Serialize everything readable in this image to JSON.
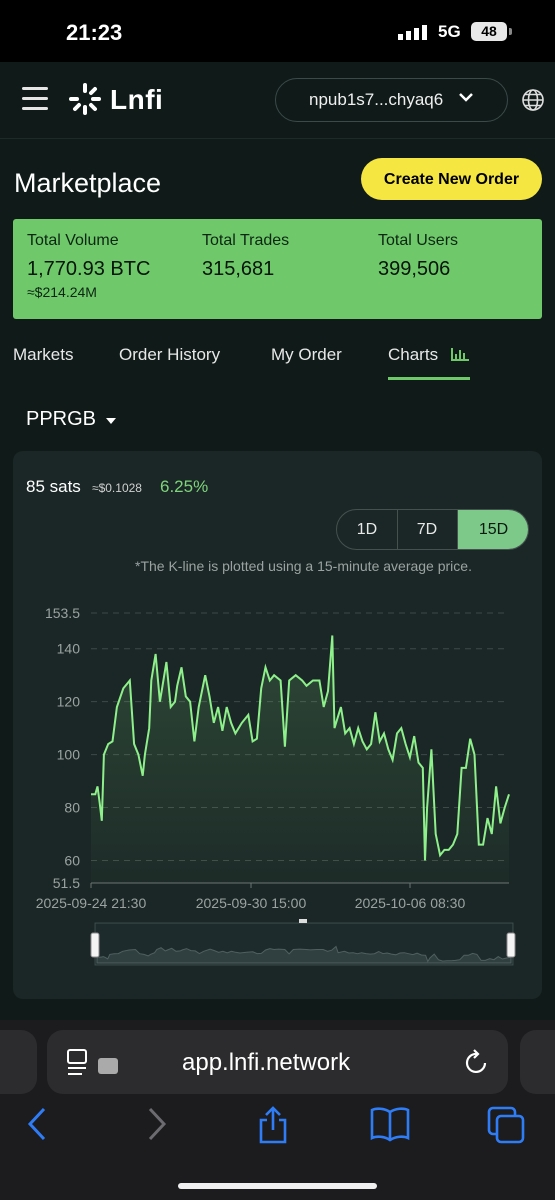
{
  "status_bar": {
    "time": "21:23",
    "network": "5G",
    "battery": "48"
  },
  "header": {
    "brand": "Lnfi",
    "wallet": "npub1s7...chyaq6"
  },
  "page": {
    "title": "Marketplace",
    "create_button": "Create New Order"
  },
  "stats": [
    {
      "label": "Total Volume",
      "value": "1,770.93 BTC",
      "sub": "≈$214.24M"
    },
    {
      "label": "Total Trades",
      "value": "315,681"
    },
    {
      "label": "Total Users",
      "value": "399,506"
    }
  ],
  "tabs": [
    "Markets",
    "Order History",
    "My Order",
    "Charts"
  ],
  "active_tab": "Charts",
  "token": {
    "selected": "PPRGB"
  },
  "price": {
    "sats": "85 sats",
    "usd": "≈$0.1028",
    "change": "6.25%"
  },
  "ranges": [
    "1D",
    "7D",
    "15D"
  ],
  "active_range": "15D",
  "note": "*The K-line is plotted using a 15-minute average price.",
  "browser": {
    "url": "app.lnfi.network"
  },
  "colors": {
    "accent_green": "#6fc96a",
    "line_green": "#8ef08a",
    "button_yellow": "#f5e642",
    "card_bg": "#1b2726"
  },
  "chart_data": {
    "type": "line",
    "ylim": [
      51.5,
      153.5
    ],
    "yticks": [
      "153.5",
      "140",
      "120",
      "100",
      "80",
      "60",
      "51.5"
    ],
    "xticks": [
      "2025-09-24 21:30",
      "2025-09-30 15:00",
      "2025-10-06 08:30"
    ],
    "x_range_days": [
      0,
      15
    ],
    "points": [
      [
        0,
        85
      ],
      [
        0.2,
        85
      ],
      [
        0.3,
        88
      ],
      [
        0.4,
        82
      ],
      [
        0.5,
        75
      ],
      [
        0.6,
        100
      ],
      [
        0.8,
        104
      ],
      [
        1.0,
        105
      ],
      [
        1.2,
        118
      ],
      [
        1.5,
        125
      ],
      [
        1.8,
        128
      ],
      [
        2.0,
        104
      ],
      [
        2.2,
        100
      ],
      [
        2.4,
        92
      ],
      [
        2.5,
        100
      ],
      [
        2.7,
        110
      ],
      [
        2.8,
        128
      ],
      [
        3.0,
        138
      ],
      [
        3.2,
        120
      ],
      [
        3.3,
        125
      ],
      [
        3.5,
        135
      ],
      [
        3.7,
        118
      ],
      [
        3.9,
        120
      ],
      [
        4.0,
        126
      ],
      [
        4.2,
        133
      ],
      [
        4.4,
        122
      ],
      [
        4.6,
        120
      ],
      [
        4.8,
        105
      ],
      [
        5.0,
        118
      ],
      [
        5.3,
        130
      ],
      [
        5.5,
        122
      ],
      [
        5.7,
        112
      ],
      [
        5.9,
        118
      ],
      [
        6.1,
        109
      ],
      [
        6.3,
        118
      ],
      [
        6.5,
        112
      ],
      [
        6.7,
        108
      ],
      [
        7.0,
        112
      ],
      [
        7.3,
        115
      ],
      [
        7.5,
        105
      ],
      [
        7.7,
        106
      ],
      [
        7.9,
        125
      ],
      [
        8.1,
        133
      ],
      [
        8.3,
        128
      ],
      [
        8.5,
        130
      ],
      [
        8.8,
        128
      ],
      [
        9.0,
        103
      ],
      [
        9.2,
        128
      ],
      [
        9.5,
        130
      ],
      [
        9.8,
        128
      ],
      [
        10.0,
        126
      ],
      [
        10.3,
        128
      ],
      [
        10.6,
        128
      ],
      [
        10.8,
        118
      ],
      [
        11.0,
        124
      ],
      [
        11.2,
        145
      ],
      [
        11.3,
        110
      ],
      [
        11.6,
        118
      ],
      [
        11.8,
        108
      ],
      [
        12.0,
        110
      ],
      [
        12.2,
        104
      ],
      [
        12.4,
        110
      ],
      [
        12.6,
        105
      ],
      [
        12.8,
        102
      ],
      [
        13.0,
        104
      ],
      [
        13.2,
        116
      ],
      [
        13.4,
        105
      ],
      [
        13.6,
        108
      ],
      [
        13.8,
        102
      ],
      [
        14.0,
        98
      ],
      [
        14.2,
        108
      ],
      [
        14.4,
        110
      ],
      [
        14.6,
        104
      ],
      [
        14.8,
        99
      ],
      [
        15.0,
        107
      ],
      [
        15.2,
        97
      ],
      [
        15.4,
        95
      ],
      [
        15.5,
        60
      ],
      [
        15.6,
        80
      ],
      [
        15.8,
        102
      ],
      [
        16.0,
        70
      ],
      [
        16.2,
        62
      ],
      [
        16.4,
        64
      ],
      [
        16.6,
        64
      ],
      [
        16.8,
        66
      ],
      [
        17.0,
        70
      ],
      [
        17.2,
        95
      ],
      [
        17.4,
        95
      ],
      [
        17.6,
        106
      ],
      [
        17.8,
        100
      ],
      [
        18.0,
        66
      ],
      [
        18.2,
        66
      ],
      [
        18.4,
        76
      ],
      [
        18.6,
        70
      ],
      [
        18.8,
        88
      ],
      [
        19.0,
        74
      ],
      [
        19.2,
        80
      ],
      [
        19.4,
        85
      ]
    ]
  }
}
